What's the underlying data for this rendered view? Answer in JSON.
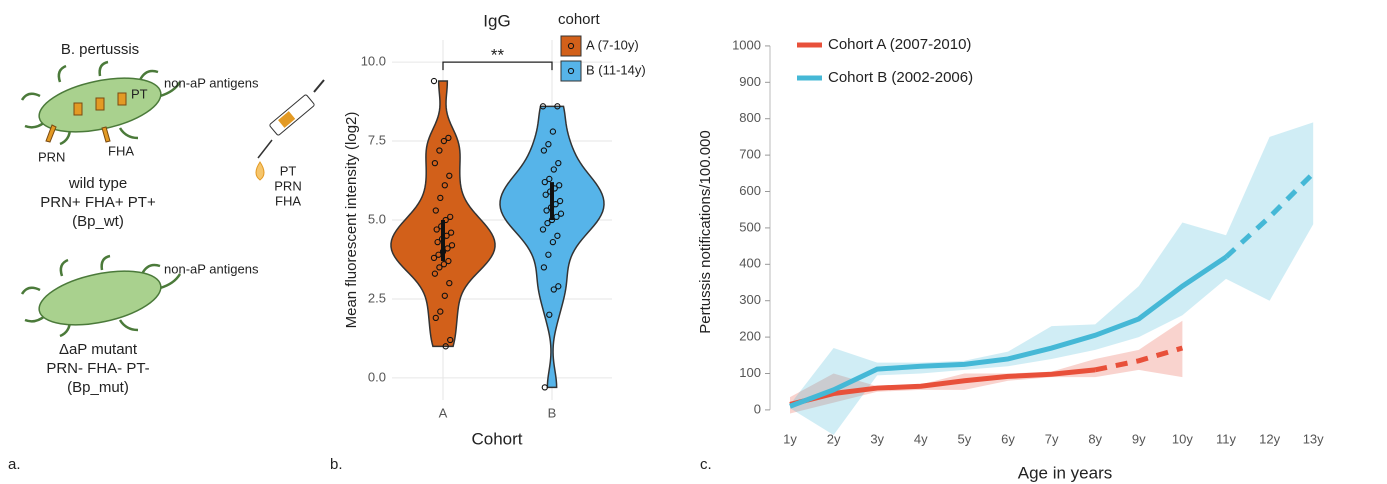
{
  "panel_labels": [
    "a.",
    "b.",
    "c."
  ],
  "diagram": {
    "title": "B. pertussis",
    "wild_type": {
      "antigens_note": "non-aP antigens",
      "pt": "PT",
      "prn": "PRN",
      "fha": "FHA",
      "lines": [
        "wild type",
        "PRN+ FHA+ PT+",
        "(Bp_wt)"
      ]
    },
    "vaccine": {
      "lines": [
        "PT",
        "PRN",
        "FHA"
      ]
    },
    "mutant": {
      "antigens_note": "non-aP antigens",
      "lines": [
        "ΔaP mutant",
        "PRN- FHA- PT-",
        "(Bp_mut)"
      ]
    }
  },
  "chart_data": [
    {
      "type": "violin",
      "title": "IgG",
      "xlabel": "Cohort",
      "ylabel": "Mean fluorescent intensity (log2)",
      "categories": [
        "A",
        "B"
      ],
      "legend_title": "cohort",
      "significance": "**",
      "ylim": [
        -0.7,
        10.7
      ],
      "yticks": [
        {
          "value": 0,
          "label": "0.0"
        },
        {
          "value": 2.5,
          "label": "2.5"
        },
        {
          "value": 5,
          "label": "5.0"
        },
        {
          "value": 7.5,
          "label": "7.5"
        },
        {
          "value": 10,
          "label": "10.0"
        }
      ],
      "grid": true,
      "series": [
        {
          "name": "A (7-10y)",
          "color": "#d2601a",
          "interval": [
            3.7,
            5.0
          ],
          "values": [
            9.4,
            7.6,
            7.5,
            7.2,
            6.8,
            6.4,
            6.1,
            5.7,
            5.3,
            5.1,
            5.0,
            4.8,
            4.7,
            4.6,
            4.5,
            4.4,
            4.3,
            4.2,
            4.1,
            4.0,
            3.9,
            3.8,
            3.7,
            3.6,
            3.5,
            3.3,
            3.0,
            2.6,
            2.1,
            1.9,
            1.2,
            1.0
          ]
        },
        {
          "name": "B (11-14y)",
          "color": "#56b4e9",
          "interval": [
            5.0,
            6.2
          ],
          "values": [
            8.6,
            8.6,
            7.8,
            7.4,
            7.2,
            6.8,
            6.6,
            6.3,
            6.2,
            6.1,
            6.0,
            5.9,
            5.8,
            5.6,
            5.5,
            5.4,
            5.3,
            5.2,
            5.1,
            5.0,
            4.9,
            4.7,
            4.5,
            4.3,
            3.9,
            3.5,
            2.9,
            2.8,
            2.0,
            -0.3
          ]
        }
      ]
    },
    {
      "type": "line",
      "xlabel": "Age in years",
      "ylabel": "Pertussis notifications/100.000",
      "categories": [
        "1y",
        "2y",
        "3y",
        "4y",
        "5y",
        "6y",
        "7y",
        "8y",
        "9y",
        "10y",
        "11y",
        "12y",
        "13y"
      ],
      "ylim": [
        -75,
        1030
      ],
      "yticks": [
        0,
        100,
        200,
        300,
        400,
        500,
        600,
        700,
        800,
        900,
        1000
      ],
      "legend": "top-left",
      "series": [
        {
          "name": "Cohort A (2007-2010)",
          "color": "#e8503a",
          "dashed_from_index": 7,
          "values": [
            15,
            45,
            60,
            65,
            80,
            92,
            98,
            110,
            135,
            170,
            null,
            null,
            null
          ],
          "lower": [
            -10,
            20,
            50,
            55,
            55,
            80,
            90,
            90,
            110,
            90,
            null,
            null,
            null
          ],
          "upper": [
            35,
            100,
            65,
            70,
            100,
            100,
            105,
            140,
            165,
            245,
            null,
            null,
            null
          ]
        },
        {
          "name": "Cohort B (2002-2006)",
          "color": "#45b8d6",
          "dashed_from_index": 10,
          "values": [
            10,
            55,
            112,
            120,
            125,
            140,
            170,
            205,
            250,
            340,
            420,
            530,
            650
          ],
          "lower": [
            5,
            -69,
            95,
            100,
            110,
            120,
            140,
            165,
            200,
            260,
            360,
            300,
            510
          ],
          "upper": [
            15,
            170,
            130,
            130,
            135,
            160,
            230,
            235,
            340,
            515,
            480,
            750,
            790
          ]
        }
      ]
    }
  ]
}
